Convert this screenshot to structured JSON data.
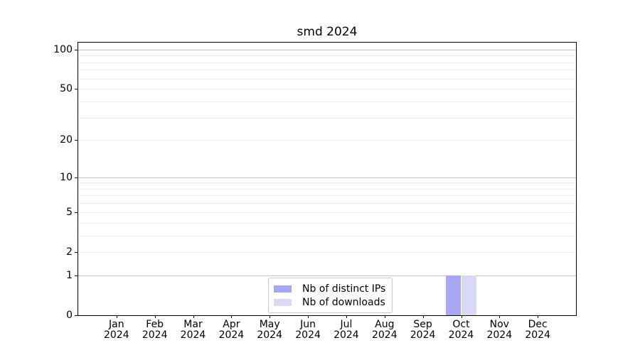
{
  "chart_data": {
    "type": "bar",
    "title": "smd 2024",
    "categories": [
      "Jan",
      "Feb",
      "Mar",
      "Apr",
      "May",
      "Jun",
      "Jul",
      "Aug",
      "Sep",
      "Oct",
      "Nov",
      "Dec"
    ],
    "tick_year": "2024",
    "series": [
      {
        "name": "Nb of distinct IPs",
        "color": "#a8a8f2",
        "values": [
          0,
          0,
          0,
          0,
          0,
          0,
          0,
          0,
          0,
          1,
          0,
          0
        ]
      },
      {
        "name": "Nb of downloads",
        "color": "#d9d9f6",
        "values": [
          0,
          0,
          0,
          0,
          0,
          0,
          0,
          0,
          0,
          1,
          0,
          0
        ]
      }
    ],
    "xlabel": "",
    "ylabel": "",
    "y_axis": {
      "scale": "log1p",
      "ticks": [
        0,
        1,
        2,
        5,
        10,
        20,
        50,
        100
      ],
      "max": 113
    },
    "grid": {
      "major": [
        1,
        10,
        100
      ],
      "minor": [
        2,
        3,
        4,
        5,
        6,
        7,
        8,
        9,
        20,
        30,
        40,
        50,
        60,
        70,
        80,
        90
      ],
      "on": true
    },
    "legend": {
      "position": "lower center"
    }
  }
}
